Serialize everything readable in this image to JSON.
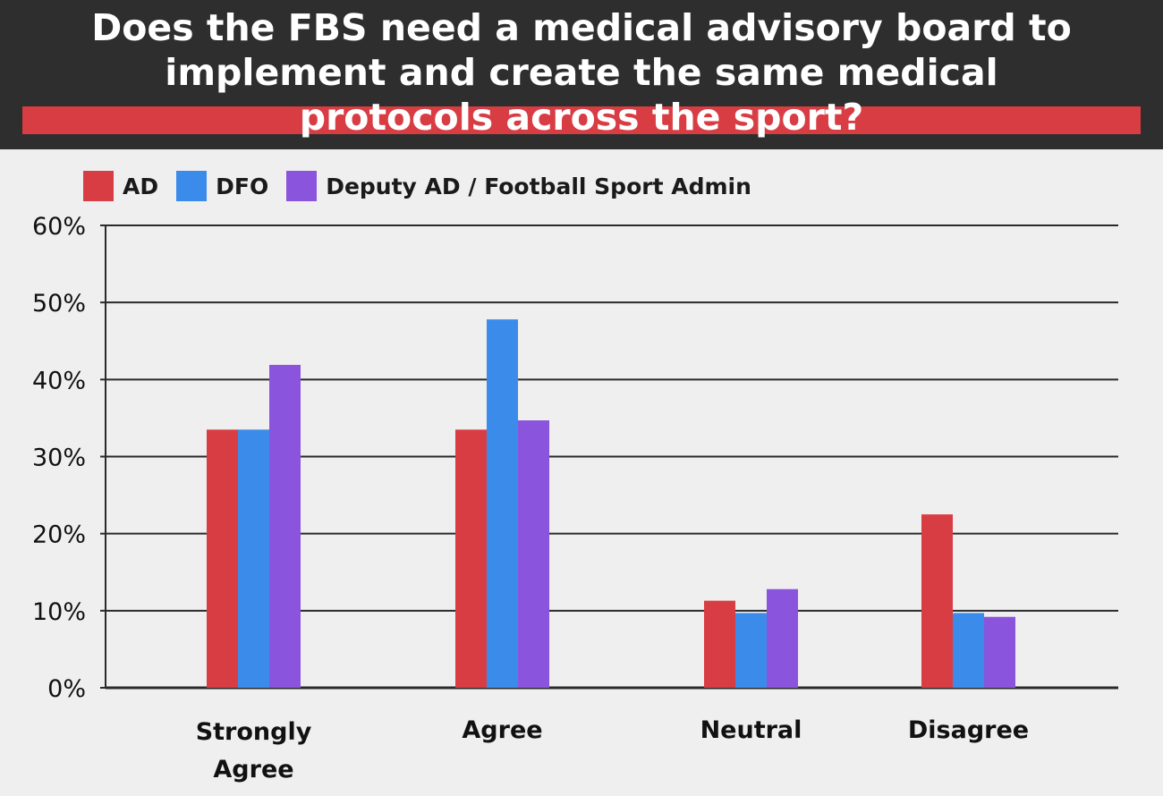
{
  "chart_data": {
    "type": "bar",
    "title_lines": [
      "Does the FBS need a medical advisory board to",
      "implement and create the same medical",
      "protocols across the sport?"
    ],
    "categories": [
      "Strongly Agree",
      "Agree",
      "Neutral",
      "Disagree"
    ],
    "category_label_lines": [
      [
        "Strongly",
        "Agree"
      ],
      [
        "Agree"
      ],
      [
        "Neutral"
      ],
      [
        "Disagree"
      ]
    ],
    "series": [
      {
        "name": "AD",
        "color": "#d93d44",
        "values": [
          33.5,
          33.5,
          11.3,
          22.5
        ]
      },
      {
        "name": "DFO",
        "color": "#3b8beb",
        "values": [
          33.5,
          47.8,
          9.7,
          9.7
        ]
      },
      {
        "name": "Deputy AD / Football Sport Admin",
        "color": "#8b54dc",
        "values": [
          41.9,
          34.7,
          12.8,
          9.2
        ]
      }
    ],
    "y_ticks": [
      "0%",
      "10%",
      "20%",
      "30%",
      "40%",
      "50%",
      "60%"
    ],
    "ylim": [
      0,
      60
    ],
    "ylabel_unit": "%",
    "grid": true,
    "legend_position": "top-left",
    "colors": {
      "header_bg": "#2e2e2e",
      "header_accent": "#d93d44",
      "page_bg": "#efefef"
    }
  }
}
